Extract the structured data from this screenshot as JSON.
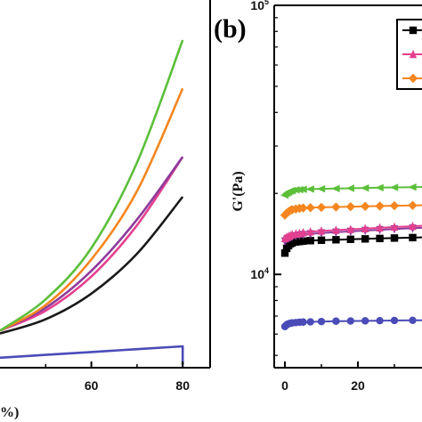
{
  "chart_data": [
    {
      "panel_label": "",
      "type": "line",
      "xlabel": "%)",
      "ylabel": "",
      "xlim": [
        40,
        86
      ],
      "x_ticks": [
        60,
        80
      ],
      "grid": false,
      "series": [
        {
          "color": "#1a1a1a",
          "x": [
            40,
            50,
            60,
            70,
            80
          ],
          "y": [
            0.12,
            0.17,
            0.26,
            0.4,
            0.6
          ]
        },
        {
          "color": "#4b4bb8",
          "x": [
            40,
            50,
            60,
            70,
            80,
            80
          ],
          "y": [
            0.035,
            0.045,
            0.055,
            0.065,
            0.075,
            0.01
          ]
        },
        {
          "color": "#e3408f",
          "x": [
            40,
            50,
            60,
            70,
            80
          ],
          "y": [
            0.13,
            0.2,
            0.32,
            0.5,
            0.74
          ]
        },
        {
          "color": "#8e3a9c",
          "x": [
            40,
            50,
            60,
            70,
            80
          ],
          "y": [
            0.13,
            0.21,
            0.34,
            0.52,
            0.74
          ]
        },
        {
          "color": "#f5861f",
          "x": [
            40,
            50,
            60,
            70,
            80
          ],
          "y": [
            0.13,
            0.22,
            0.38,
            0.62,
            0.98
          ]
        },
        {
          "color": "#5cbf3a",
          "x": [
            40,
            50,
            60,
            70,
            80
          ],
          "y": [
            0.13,
            0.24,
            0.42,
            0.72,
            1.15
          ]
        }
      ]
    },
    {
      "panel_label": "(b)",
      "type": "line",
      "xlabel": "",
      "ylabel": "G'(Pa)",
      "yscale": "log",
      "ylim": [
        4500,
        100000
      ],
      "xlim": [
        -2,
        40
      ],
      "x_ticks": [
        0,
        20
      ],
      "y_ticks": [
        {
          "value": 10000,
          "mantissa": "10",
          "exponent": "4"
        },
        {
          "value": 100000,
          "mantissa": "10",
          "exponent": "5"
        }
      ],
      "legend_placement": "top-right",
      "grid": false,
      "series": [
        {
          "color": "#000000",
          "marker": "square",
          "x": [
            0,
            0.5,
            1,
            1.5,
            2,
            3,
            4,
            5,
            7,
            10,
            14,
            18,
            22,
            26,
            30,
            35,
            40
          ],
          "y": [
            12000,
            12500,
            12800,
            13000,
            13100,
            13200,
            13250,
            13300,
            13350,
            13400,
            13450,
            13500,
            13550,
            13600,
            13650,
            13700,
            13750
          ]
        },
        {
          "color": "#8e3a9c",
          "marker": "triangle-down",
          "x": [
            0,
            0.5,
            1,
            1.5,
            2,
            3,
            4,
            5,
            7,
            10,
            14,
            18,
            22,
            26,
            30,
            35,
            40
          ],
          "y": [
            13300,
            13500,
            13600,
            13700,
            13800,
            13900,
            14000,
            14050,
            14150,
            14250,
            14350,
            14450,
            14550,
            14650,
            14750,
            14850,
            14950
          ]
        },
        {
          "color": "#e3408f",
          "marker": "triangle-up",
          "x": [
            0,
            0.5,
            1,
            1.5,
            2,
            3,
            4,
            5,
            7,
            10,
            14,
            18,
            22,
            26,
            30,
            35,
            40
          ],
          "y": [
            13600,
            13750,
            13850,
            13950,
            14050,
            14150,
            14200,
            14300,
            14400,
            14500,
            14600,
            14700,
            14800,
            14900,
            15000,
            15100,
            15200
          ]
        },
        {
          "color": "#f5861f",
          "marker": "diamond",
          "x": [
            0,
            0.5,
            1,
            1.5,
            2,
            3,
            4,
            5,
            7,
            10,
            14,
            18,
            22,
            26,
            30,
            35,
            40
          ],
          "y": [
            16600,
            16900,
            17100,
            17300,
            17400,
            17500,
            17600,
            17650,
            17700,
            17750,
            17800,
            17850,
            17900,
            17950,
            18000,
            18050,
            18100
          ]
        },
        {
          "color": "#5cbf3a",
          "marker": "triangle-left",
          "x": [
            0,
            0.5,
            1,
            1.5,
            2,
            3,
            4,
            5,
            7,
            10,
            14,
            18,
            22,
            26,
            30,
            35,
            40
          ],
          "y": [
            19700,
            20000,
            20200,
            20400,
            20500,
            20600,
            20650,
            20700,
            20750,
            20800,
            20850,
            20900,
            20950,
            21000,
            21050,
            21100,
            21150
          ]
        },
        {
          "color": "#4b4bb8",
          "marker": "circle",
          "x": [
            0,
            0.5,
            1,
            1.5,
            2,
            3,
            4,
            5,
            7,
            10,
            14,
            18,
            22,
            26,
            30,
            35,
            40
          ],
          "y": [
            6400,
            6500,
            6550,
            6580,
            6600,
            6620,
            6640,
            6650,
            6660,
            6680,
            6700,
            6710,
            6720,
            6730,
            6740,
            6750,
            6760
          ]
        }
      ],
      "legend": [
        {
          "color": "#000000",
          "marker": "square"
        },
        {
          "color": "#e3408f",
          "marker": "triangle-up"
        },
        {
          "color": "#f5861f",
          "marker": "diamond"
        }
      ]
    }
  ]
}
